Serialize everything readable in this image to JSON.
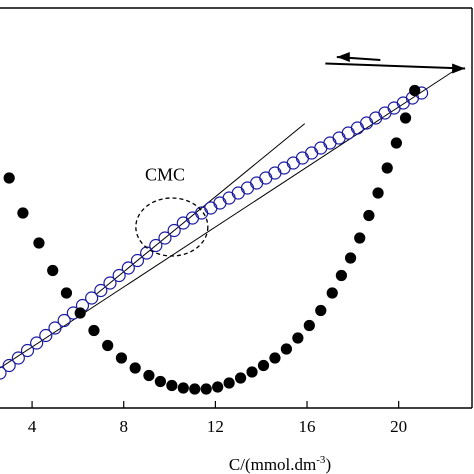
{
  "chart_data": {
    "type": "scatter",
    "xlabel": "C/(mmol.dm",
    "xlabel_sup": "-3",
    "xlabel_close": ")",
    "xlim": [
      2.6,
      23.2
    ],
    "x_ticks": [
      4,
      8,
      12,
      16,
      20
    ],
    "grid": false,
    "annotations": [
      {
        "text": "CMC"
      }
    ],
    "series": [
      {
        "marker": "open-circle",
        "color": "#1a1aa0",
        "axis": "left",
        "arrow": "left",
        "x": [
          2.6,
          3.0,
          3.4,
          3.8,
          4.2,
          4.6,
          5.0,
          5.4,
          5.8,
          6.2,
          6.6,
          7.0,
          7.4,
          7.8,
          8.2,
          8.6,
          9.0,
          9.4,
          9.8,
          10.2,
          10.6,
          11.0,
          11.4,
          11.8,
          12.2,
          12.6,
          13.0,
          13.4,
          13.8,
          14.2,
          14.6,
          15.0,
          15.4,
          15.8,
          16.2,
          16.6,
          17.0,
          17.4,
          17.8,
          18.2,
          18.6,
          19.0,
          19.4,
          19.8,
          20.2,
          20.6,
          21.0
        ],
        "values": [
          1.7,
          1.85,
          2.0,
          2.15,
          2.3,
          2.45,
          2.6,
          2.75,
          2.9,
          3.05,
          3.2,
          3.35,
          3.5,
          3.65,
          3.8,
          3.95,
          4.1,
          4.25,
          4.4,
          4.55,
          4.7,
          4.8,
          4.9,
          5.0,
          5.1,
          5.2,
          5.3,
          5.4,
          5.5,
          5.6,
          5.7,
          5.8,
          5.9,
          6.0,
          6.1,
          6.2,
          6.3,
          6.4,
          6.5,
          6.6,
          6.7,
          6.8,
          6.9,
          7.0,
          7.1,
          7.2,
          7.3
        ]
      },
      {
        "marker": "filled-circle",
        "color": "#000000",
        "axis": "right",
        "arrow": "right",
        "x": [
          3.0,
          3.6,
          4.3,
          4.9,
          5.5,
          6.1,
          6.7,
          7.3,
          7.9,
          8.5,
          9.1,
          9.6,
          10.1,
          10.6,
          11.1,
          11.6,
          12.1,
          12.6,
          13.1,
          13.6,
          14.1,
          14.6,
          15.1,
          15.6,
          16.1,
          16.6,
          17.1,
          17.5,
          17.9,
          18.3,
          18.7,
          19.1,
          19.5,
          19.9,
          20.3,
          20.7
        ],
        "values": [
          4.6,
          3.9,
          3.3,
          2.75,
          2.3,
          1.9,
          1.55,
          1.25,
          1.0,
          0.8,
          0.65,
          0.53,
          0.45,
          0.4,
          0.38,
          0.38,
          0.42,
          0.5,
          0.6,
          0.72,
          0.85,
          1.0,
          1.18,
          1.4,
          1.65,
          1.95,
          2.3,
          2.65,
          3.0,
          3.4,
          3.85,
          4.3,
          4.8,
          5.3,
          5.8,
          6.35
        ]
      }
    ],
    "left_ylim": [
      1.0,
      9.0
    ],
    "right_ylim": [
      0.0,
      8.0
    ]
  }
}
